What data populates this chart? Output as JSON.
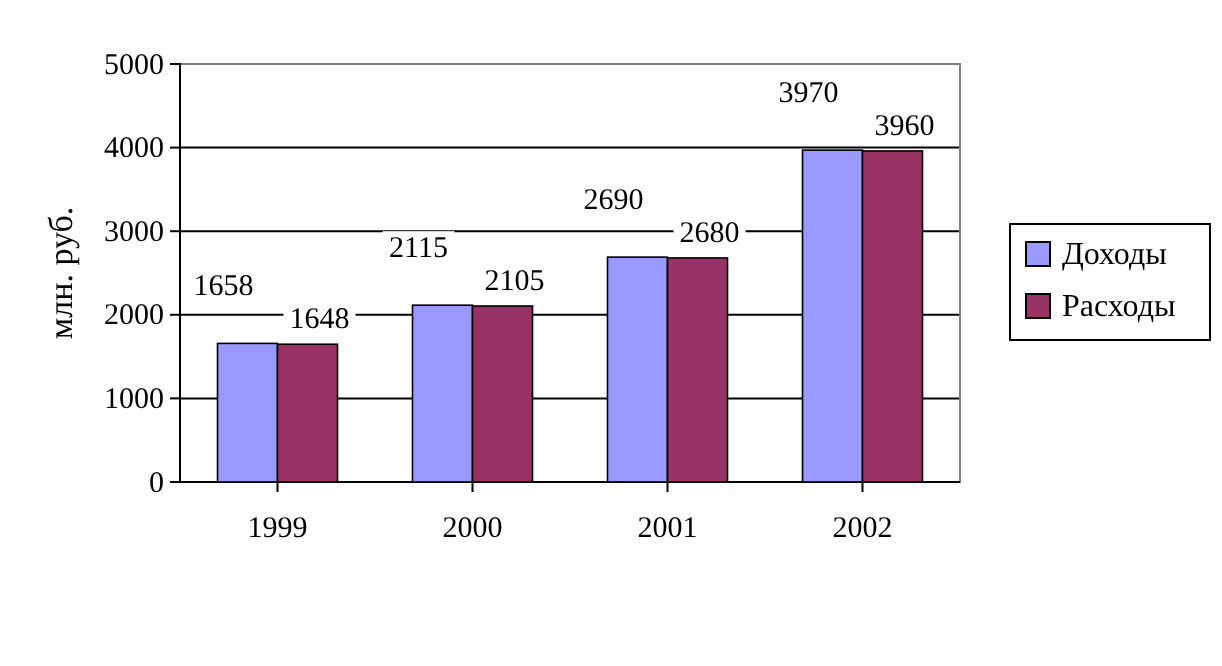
{
  "chart_data": {
    "type": "bar",
    "ylabel": "млн. руб.",
    "categories": [
      "1999",
      "2000",
      "2001",
      "2002"
    ],
    "series": [
      {
        "name": "Доходы",
        "color": "#9999ff",
        "values": [
          1658,
          2115,
          2690,
          3970
        ]
      },
      {
        "name": "Расходы",
        "color": "#993366",
        "values": [
          1648,
          2105,
          2680,
          3960
        ]
      }
    ],
    "ylim": [
      0,
      5000
    ],
    "yticks": [
      0,
      1000,
      2000,
      3000,
      4000,
      5000
    ],
    "grid": "y",
    "legend": "right",
    "data_labels": true
  }
}
